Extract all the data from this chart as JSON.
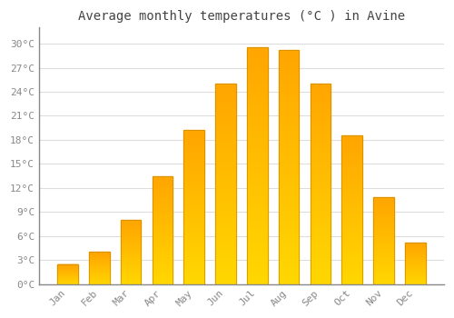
{
  "title": "Average monthly temperatures (°C ) in Avine",
  "months": [
    "Jan",
    "Feb",
    "Mar",
    "Apr",
    "May",
    "Jun",
    "Jul",
    "Aug",
    "Sep",
    "Oct",
    "Nov",
    "Dec"
  ],
  "temperatures": [
    2.5,
    4.0,
    8.0,
    13.5,
    19.2,
    25.0,
    29.5,
    29.2,
    25.0,
    18.5,
    10.8,
    5.2
  ],
  "bar_color_top": "#FFA500",
  "bar_color_bottom": "#FFD700",
  "bar_edge_color": "#cc8800",
  "ylim": [
    0,
    32
  ],
  "yticks": [
    0,
    3,
    6,
    9,
    12,
    15,
    18,
    21,
    24,
    27,
    30
  ],
  "background_color": "#ffffff",
  "grid_color": "#dddddd",
  "title_fontsize": 10,
  "tick_fontsize": 8,
  "tick_color": "#888888",
  "title_color": "#444444",
  "font_family": "monospace",
  "bar_width": 0.65,
  "n_gradient_steps": 50
}
